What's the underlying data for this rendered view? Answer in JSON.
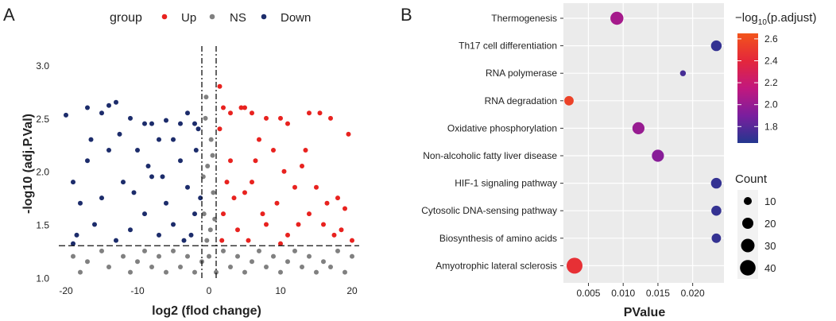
{
  "chart_data": [
    {
      "panel_label": "A",
      "type": "scatter",
      "subtype": "volcano",
      "xlabel": "log2 (flod change)",
      "ylabel": "-log10 (adj.P.Val)",
      "xlim": [
        -21,
        21
      ],
      "ylim": [
        0.98,
        3.18
      ],
      "xticks": [
        -20,
        -10,
        0,
        10,
        20
      ],
      "xtick_labels": [
        "-20",
        "-10",
        "0",
        "10",
        "20"
      ],
      "yticks": [
        1.0,
        1.5,
        2.0,
        2.5,
        3.0
      ],
      "ytick_labels": [
        "1.0",
        "1.5",
        "2.0",
        "2.5",
        "3.0"
      ],
      "thresholds": {
        "x": [
          -1,
          1
        ],
        "y": 1.3
      },
      "legend": {
        "title": "group",
        "position": "top",
        "entries": [
          {
            "label": "Up",
            "color": "#e8221f"
          },
          {
            "label": "NS",
            "color": "#808080"
          },
          {
            "label": "Down",
            "color": "#1c2c6b"
          }
        ]
      },
      "series": [
        {
          "name": "Up",
          "color": "#e8221f",
          "points": [
            [
              1.5,
              2.8
            ],
            [
              2,
              2.6
            ],
            [
              3,
              2.55
            ],
            [
              4.5,
              2.6
            ],
            [
              5,
              2.6
            ],
            [
              6,
              2.55
            ],
            [
              8,
              2.5
            ],
            [
              10,
              2.5
            ],
            [
              11,
              2.45
            ],
            [
              14,
              2.55
            ],
            [
              15.5,
              2.55
            ],
            [
              17,
              2.5
            ],
            [
              19.5,
              2.35
            ],
            [
              18,
              1.75
            ],
            [
              19,
              1.65
            ],
            [
              17.5,
              1.4
            ],
            [
              16,
              1.5
            ],
            [
              13,
              2.05
            ],
            [
              12,
              1.85
            ],
            [
              9,
              2.2
            ],
            [
              7,
              2.3
            ],
            [
              3,
              2.1
            ],
            [
              5,
              1.8
            ],
            [
              2,
              1.6
            ],
            [
              8,
              1.5
            ],
            [
              11,
              1.4
            ],
            [
              14,
              1.6
            ],
            [
              4,
              1.45
            ],
            [
              6,
              1.9
            ],
            [
              9.5,
              1.7
            ],
            [
              15,
              1.85
            ],
            [
              12.5,
              1.5
            ],
            [
              2.5,
              1.9
            ],
            [
              7.5,
              1.6
            ],
            [
              10.5,
              2.0
            ],
            [
              16.5,
              1.7
            ],
            [
              18.5,
              1.45
            ],
            [
              13.5,
              2.2
            ],
            [
              6.5,
              2.1
            ],
            [
              3.5,
              1.75
            ],
            [
              1.5,
              2.4
            ],
            [
              1.8,
              1.35
            ],
            [
              5.5,
              1.35
            ],
            [
              10,
              1.32
            ],
            [
              20,
              1.35
            ]
          ]
        },
        {
          "name": "Down",
          "color": "#1c2c6b",
          "points": [
            [
              -20,
              2.53
            ],
            [
              -17,
              2.6
            ],
            [
              -15,
              2.55
            ],
            [
              -14,
              2.62
            ],
            [
              -13,
              2.65
            ],
            [
              -11,
              2.5
            ],
            [
              -9,
              2.45
            ],
            [
              -8,
              2.45
            ],
            [
              -6,
              2.48
            ],
            [
              -4,
              2.45
            ],
            [
              -3,
              2.55
            ],
            [
              -2,
              2.45
            ],
            [
              -1.5,
              2.4
            ],
            [
              -19,
              1.9
            ],
            [
              -18,
              1.7
            ],
            [
              -17,
              2.1
            ],
            [
              -16,
              1.5
            ],
            [
              -15,
              1.75
            ],
            [
              -14,
              2.2
            ],
            [
              -12,
              1.9
            ],
            [
              -11,
              1.45
            ],
            [
              -10,
              2.2
            ],
            [
              -9,
              1.6
            ],
            [
              -8,
              1.95
            ],
            [
              -7,
              2.3
            ],
            [
              -6,
              1.7
            ],
            [
              -5,
              1.5
            ],
            [
              -4,
              2.1
            ],
            [
              -3,
              1.85
            ],
            [
              -2,
              1.6
            ],
            [
              -1.8,
              2.2
            ],
            [
              -2.5,
              1.4
            ],
            [
              -5,
              2.3
            ],
            [
              -7,
              1.4
            ],
            [
              -13,
              1.35
            ],
            [
              -18.5,
              1.4
            ],
            [
              -19,
              1.32
            ],
            [
              -16.5,
              2.3
            ],
            [
              -12.5,
              2.35
            ],
            [
              -10.5,
              1.8
            ],
            [
              -8.5,
              2.05
            ],
            [
              -3.5,
              1.35
            ],
            [
              -6.5,
              1.95
            ],
            [
              -1.2,
              1.75
            ]
          ]
        },
        {
          "name": "NS",
          "color": "#808080",
          "points": [
            [
              -19,
              1.2
            ],
            [
              -18,
              1.05
            ],
            [
              -17,
              1.15
            ],
            [
              -15,
              1.25
            ],
            [
              -14,
              1.1
            ],
            [
              -12,
              1.2
            ],
            [
              -11,
              1.05
            ],
            [
              -10,
              1.15
            ],
            [
              -9,
              1.25
            ],
            [
              -8,
              1.1
            ],
            [
              -7,
              1.2
            ],
            [
              -6,
              1.05
            ],
            [
              -5,
              1.25
            ],
            [
              -4,
              1.1
            ],
            [
              -3,
              1.2
            ],
            [
              -2,
              1.05
            ],
            [
              -1,
              1.15
            ],
            [
              0,
              1.2
            ],
            [
              1,
              1.05
            ],
            [
              2,
              1.25
            ],
            [
              3,
              1.1
            ],
            [
              4,
              1.2
            ],
            [
              5,
              1.05
            ],
            [
              6,
              1.15
            ],
            [
              7,
              1.25
            ],
            [
              8,
              1.1
            ],
            [
              9,
              1.2
            ],
            [
              10,
              1.05
            ],
            [
              11,
              1.15
            ],
            [
              12,
              1.25
            ],
            [
              13,
              1.1
            ],
            [
              14,
              1.2
            ],
            [
              15,
              1.05
            ],
            [
              16,
              1.15
            ],
            [
              17,
              1.1
            ],
            [
              18,
              1.25
            ],
            [
              19,
              1.05
            ],
            [
              20,
              1.2
            ],
            [
              -0.5,
              2.5
            ],
            [
              0.3,
              2.3
            ],
            [
              -0.2,
              2.05
            ],
            [
              0.6,
              1.8
            ],
            [
              -0.7,
              1.6
            ],
            [
              0.2,
              1.45
            ],
            [
              -0.4,
              2.7
            ],
            [
              0.5,
              2.15
            ],
            [
              -0.8,
              1.95
            ],
            [
              0.8,
              1.55
            ],
            [
              -0.3,
              1.35
            ]
          ]
        }
      ]
    },
    {
      "panel_label": "B",
      "type": "scatter",
      "subtype": "dot-plot",
      "xlabel": "PValue",
      "ylabel": "",
      "xlim": [
        0.0014,
        0.0245
      ],
      "xticks": [
        0.005,
        0.01,
        0.015,
        0.02
      ],
      "xtick_labels": [
        "0.005",
        "0.010",
        "0.015",
        "0.020"
      ],
      "categories": [
        "Thermogenesis",
        "Th17 cell differentiation",
        "RNA polymerase",
        "RNA degradation",
        "Oxidative phosphorylation",
        "Non-alcoholic fatty liver disease",
        "HIF-1 signaling pathway",
        "Cytosolic DNA-sensing pathway",
        "Biosynthesis of amino acids",
        "Amyotrophic lateral sclerosis"
      ],
      "points": [
        {
          "term": "Thermogenesis",
          "pvalue": 0.0091,
          "count": 28,
          "neg_log10_padj": 2.05
        },
        {
          "term": "Th17 cell differentiation",
          "pvalue": 0.0234,
          "count": 18,
          "neg_log10_padj": 1.7
        },
        {
          "term": "RNA polymerase",
          "pvalue": 0.0186,
          "count": 5,
          "neg_log10_padj": 1.75
        },
        {
          "term": "RNA degradation",
          "pvalue": 0.0022,
          "count": 14,
          "neg_log10_padj": 2.55
        },
        {
          "term": "Oxidative phosphorylation",
          "pvalue": 0.0122,
          "count": 24,
          "neg_log10_padj": 2.0
        },
        {
          "term": "Non-alcoholic fatty liver disease",
          "pvalue": 0.015,
          "count": 24,
          "neg_log10_padj": 1.95
        },
        {
          "term": "HIF-1 signaling pathway",
          "pvalue": 0.0234,
          "count": 18,
          "neg_log10_padj": 1.7
        },
        {
          "term": "Cytosolic DNA-sensing pathway",
          "pvalue": 0.0234,
          "count": 16,
          "neg_log10_padj": 1.7
        },
        {
          "term": "Biosynthesis of amino acids",
          "pvalue": 0.0234,
          "count": 14,
          "neg_log10_padj": 1.7
        },
        {
          "term": "Amyotrophic lateral sclerosis",
          "pvalue": 0.003,
          "count": 42,
          "neg_log10_padj": 2.45
        }
      ],
      "colorbar": {
        "title_prefix": "−log",
        "title_sub": "10",
        "title_suffix": "(p.adjust)",
        "min": 1.65,
        "max": 2.65,
        "ticks": [
          1.8,
          2.0,
          2.2,
          2.4,
          2.6
        ],
        "tick_labels": [
          "1.8",
          "2.0",
          "2.2",
          "2.4",
          "2.6"
        ],
        "colors": [
          "#23378f",
          "#7a1e9e",
          "#c2187e",
          "#e4273b",
          "#f2541b"
        ]
      },
      "size_legend": {
        "title": "Count",
        "entries": [
          {
            "label": "10",
            "value": 10
          },
          {
            "label": "20",
            "value": 20
          },
          {
            "label": "30",
            "value": 30
          },
          {
            "label": "40",
            "value": 40
          }
        ]
      }
    }
  ]
}
